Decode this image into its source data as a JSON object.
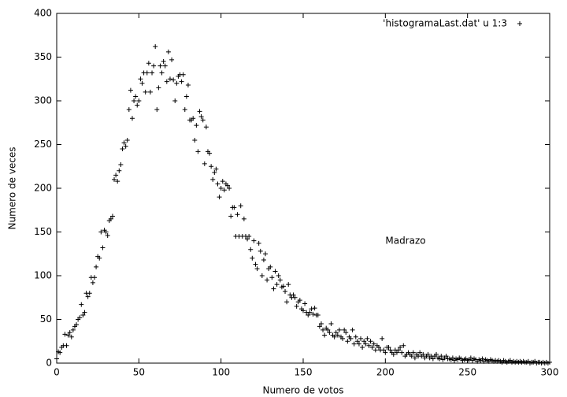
{
  "chart_data": {
    "type": "scatter",
    "xlabel": "Numero de votos",
    "ylabel": "Numero de veces",
    "annotation": "Madrazo",
    "legend": "top right",
    "grid": false,
    "xlim": [
      0,
      300
    ],
    "xticks": [
      0,
      50,
      100,
      150,
      200,
      250,
      300
    ],
    "ylim": [
      0,
      400
    ],
    "yticks": [
      0,
      50,
      100,
      150,
      200,
      250,
      300,
      350,
      400
    ],
    "series": [
      {
        "name": "'histogramaLast.dat' u 1:3",
        "color": "#000000",
        "x": [
          0,
          1,
          2,
          3,
          4,
          5,
          6,
          7,
          8,
          9,
          10,
          11,
          12,
          13,
          14,
          15,
          16,
          17,
          18,
          19,
          20,
          21,
          22,
          23,
          24,
          25,
          26,
          27,
          28,
          29,
          30,
          31,
          32,
          33,
          34,
          35,
          36,
          37,
          38,
          39,
          40,
          41,
          42,
          43,
          44,
          45,
          46,
          47,
          48,
          49,
          50,
          51,
          52,
          53,
          54,
          55,
          56,
          57,
          58,
          59,
          60,
          61,
          62,
          63,
          64,
          65,
          66,
          67,
          68,
          69,
          70,
          71,
          72,
          73,
          74,
          75,
          76,
          77,
          78,
          79,
          80,
          81,
          82,
          83,
          84,
          85,
          86,
          87,
          88,
          89,
          90,
          91,
          92,
          93,
          94,
          95,
          96,
          97,
          98,
          99,
          100,
          101,
          102,
          103,
          104,
          105,
          106,
          107,
          108,
          109,
          110,
          111,
          112,
          113,
          114,
          115,
          116,
          117,
          118,
          119,
          120,
          121,
          122,
          123,
          124,
          125,
          126,
          127,
          128,
          129,
          130,
          131,
          132,
          133,
          134,
          135,
          136,
          137,
          138,
          139,
          140,
          141,
          142,
          143,
          144,
          145,
          146,
          147,
          148,
          149,
          150,
          151,
          152,
          153,
          154,
          155,
          156,
          157,
          158,
          159,
          160,
          161,
          162,
          163,
          164,
          165,
          166,
          167,
          168,
          169,
          170,
          171,
          172,
          173,
          174,
          175,
          176,
          177,
          178,
          179,
          180,
          181,
          182,
          183,
          184,
          185,
          186,
          187,
          188,
          189,
          190,
          191,
          192,
          193,
          194,
          195,
          196,
          197,
          198,
          199,
          200,
          201,
          202,
          203,
          204,
          205,
          206,
          207,
          208,
          209,
          210,
          211,
          212,
          213,
          214,
          215,
          216,
          217,
          218,
          219,
          220,
          221,
          222,
          223,
          224,
          225,
          226,
          227,
          228,
          229,
          230,
          231,
          232,
          233,
          234,
          235,
          236,
          237,
          238,
          239,
          240,
          241,
          242,
          243,
          244,
          245,
          246,
          247,
          248,
          249,
          250,
          251,
          252,
          253,
          254,
          255,
          256,
          257,
          258,
          259,
          260,
          261,
          262,
          263,
          264,
          265,
          266,
          267,
          268,
          269,
          270,
          271,
          272,
          273,
          274,
          275,
          276,
          277,
          278,
          279,
          280,
          281,
          282,
          283,
          284,
          285,
          286,
          287,
          288,
          289,
          290,
          291,
          292,
          293,
          294,
          295,
          296,
          297,
          298,
          299,
          300
        ],
        "values": [
          5,
          13,
          12,
          18,
          20,
          33,
          20,
          32,
          35,
          30,
          38,
          42,
          44,
          50,
          52,
          67,
          55,
          58,
          80,
          76,
          80,
          98,
          92,
          98,
          110,
          122,
          120,
          150,
          132,
          152,
          150,
          146,
          163,
          165,
          168,
          210,
          215,
          208,
          220,
          227,
          245,
          252,
          248,
          255,
          290,
          312,
          280,
          300,
          305,
          295,
          300,
          325,
          320,
          332,
          310,
          332,
          343,
          310,
          332,
          340,
          362,
          290,
          315,
          340,
          332,
          345,
          340,
          322,
          356,
          325,
          347,
          324,
          300,
          320,
          328,
          330,
          322,
          330,
          290,
          305,
          318,
          278,
          278,
          280,
          255,
          272,
          242,
          288,
          282,
          278,
          228,
          270,
          242,
          240,
          225,
          210,
          218,
          222,
          205,
          190,
          200,
          208,
          198,
          205,
          203,
          200,
          168,
          178,
          178,
          145,
          170,
          145,
          180,
          145,
          165,
          145,
          142,
          145,
          130,
          120,
          140,
          113,
          108,
          137,
          128,
          100,
          118,
          125,
          95,
          108,
          110,
          98,
          85,
          105,
          90,
          100,
          95,
          87,
          88,
          82,
          70,
          90,
          78,
          75,
          78,
          75,
          65,
          70,
          72,
          62,
          60,
          68,
          58,
          55,
          58,
          62,
          56,
          63,
          55,
          55,
          42,
          45,
          38,
          32,
          40,
          38,
          35,
          45,
          32,
          30,
          35,
          32,
          38,
          30,
          28,
          38,
          35,
          25,
          30,
          28,
          38,
          22,
          30,
          25,
          22,
          28,
          18,
          25,
          22,
          28,
          20,
          25,
          18,
          22,
          15,
          20,
          18,
          15,
          28,
          15,
          12,
          18,
          18,
          15,
          12,
          10,
          15,
          12,
          15,
          18,
          12,
          20,
          8,
          10,
          12,
          10,
          8,
          12,
          6,
          10,
          8,
          12,
          8,
          10,
          6,
          8,
          10,
          6,
          8,
          5,
          8,
          10,
          6,
          5,
          8,
          4,
          6,
          8,
          5,
          5,
          4,
          6,
          3,
          5,
          4,
          6,
          5,
          3,
          4,
          5,
          3,
          4,
          6,
          3,
          5,
          4,
          2,
          4,
          3,
          5,
          2,
          4,
          3,
          2,
          4,
          3,
          2,
          3,
          2,
          3,
          2,
          1,
          3,
          2,
          1,
          2,
          3,
          1,
          2,
          1,
          2,
          1,
          2,
          1,
          2,
          1,
          1,
          2,
          0,
          1,
          1,
          2,
          0,
          1,
          1,
          0,
          1,
          0,
          1,
          0,
          1
        ]
      }
    ]
  }
}
